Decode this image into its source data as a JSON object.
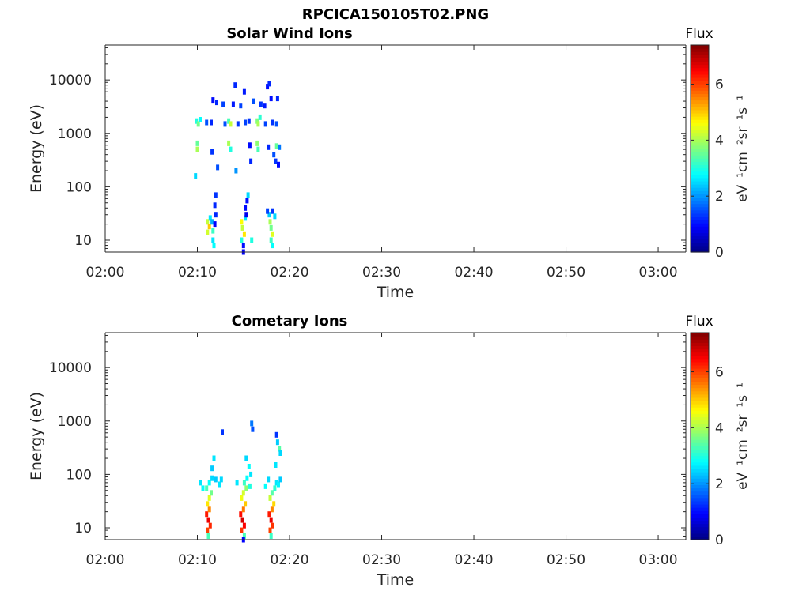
{
  "figure_title": "RPCICA150105T02.PNG",
  "colors": {
    "jet_stops": [
      "#00007f",
      "#0000ff",
      "#007fff",
      "#00ffff",
      "#7fff7f",
      "#ffff00",
      "#ff7f00",
      "#ff0000",
      "#7f0000"
    ]
  },
  "chart_data": [
    {
      "type": "heatmap",
      "title": "Solar Wind Ions",
      "xlabel": "Time",
      "ylabel": "Energy (eV)",
      "y_scale": "log",
      "ylim": [
        6,
        45000
      ],
      "xlim": [
        "02:00",
        "03:03"
      ],
      "x_ticks": [
        "02:00",
        "02:10",
        "02:20",
        "02:30",
        "02:40",
        "02:50",
        "03:00"
      ],
      "y_ticks": [
        "10",
        "100",
        "1000",
        "10000"
      ],
      "colorbar": {
        "title": "Flux",
        "label": "eV⁻¹cm⁻²sr⁻¹s⁻¹",
        "range": [
          0,
          7.4
        ],
        "ticks": [
          "0",
          "2",
          "4",
          "6"
        ]
      },
      "grid": false,
      "pixels": [
        {
          "t": "02:09.9",
          "e": 1700,
          "v": 3.0
        },
        {
          "t": "02:10.1",
          "e": 1500,
          "v": 3.6
        },
        {
          "t": "02:10.3",
          "e": 1800,
          "v": 2.8
        },
        {
          "t": "02:10.0",
          "e": 650,
          "v": 3.5
        },
        {
          "t": "02:10.0",
          "e": 500,
          "v": 4.0
        },
        {
          "t": "02:09.8",
          "e": 160,
          "v": 2.5
        },
        {
          "t": "02:11.0",
          "e": 1600,
          "v": 1.5
        },
        {
          "t": "02:11.5",
          "e": 1600,
          "v": 1.2
        },
        {
          "t": "02:11.7",
          "e": 4200,
          "v": 1.0
        },
        {
          "t": "02:12.1",
          "e": 3800,
          "v": 1.2
        },
        {
          "t": "02:11.6",
          "e": 450,
          "v": 1.3
        },
        {
          "t": "02:12.2",
          "e": 230,
          "v": 1.5
        },
        {
          "t": "02:12.8",
          "e": 3500,
          "v": 1.4
        },
        {
          "t": "02:13.0",
          "e": 1500,
          "v": 1.5
        },
        {
          "t": "02:13.4",
          "e": 1700,
          "v": 3.3
        },
        {
          "t": "02:13.6",
          "e": 1500,
          "v": 4.2
        },
        {
          "t": "02:13.4",
          "e": 650,
          "v": 4.0
        },
        {
          "t": "02:13.6",
          "e": 500,
          "v": 3.0
        },
        {
          "t": "02:13.9",
          "e": 3500,
          "v": 1.1
        },
        {
          "t": "02:14.7",
          "e": 3300,
          "v": 1.4
        },
        {
          "t": "02:14.4",
          "e": 1500,
          "v": 1.3
        },
        {
          "t": "02:14.2",
          "e": 200,
          "v": 2.0
        },
        {
          "t": "02:14.1",
          "e": 8000,
          "v": 1.2
        },
        {
          "t": "02:15.2",
          "e": 1600,
          "v": 1.4
        },
        {
          "t": "02:15.6",
          "e": 1700,
          "v": 1.3
        },
        {
          "t": "02:15.1",
          "e": 6000,
          "v": 1.1
        },
        {
          "t": "02:15.7",
          "e": 600,
          "v": 1.0
        },
        {
          "t": "02:15.8",
          "e": 300,
          "v": 1.2
        },
        {
          "t": "02:16.1",
          "e": 4000,
          "v": 1.5
        },
        {
          "t": "02:16.5",
          "e": 1700,
          "v": 3.7
        },
        {
          "t": "02:16.6",
          "e": 1500,
          "v": 4.0
        },
        {
          "t": "02:16.8",
          "e": 2000,
          "v": 3.1
        },
        {
          "t": "02:16.5",
          "e": 650,
          "v": 3.8
        },
        {
          "t": "02:16.6",
          "e": 500,
          "v": 3.3
        },
        {
          "t": "02:16.9",
          "e": 3500,
          "v": 1.3
        },
        {
          "t": "02:17.3",
          "e": 3300,
          "v": 1.1
        },
        {
          "t": "02:17.6",
          "e": 7500,
          "v": 1.0
        },
        {
          "t": "02:17.8",
          "e": 8500,
          "v": 1.2
        },
        {
          "t": "02:17.4",
          "e": 1500,
          "v": 1.4
        },
        {
          "t": "02:18.2",
          "e": 1600,
          "v": 1.3
        },
        {
          "t": "02:18.6",
          "e": 1500,
          "v": 1.5
        },
        {
          "t": "02:17.7",
          "e": 550,
          "v": 1.2
        },
        {
          "t": "02:18.3",
          "e": 400,
          "v": 1.5
        },
        {
          "t": "02:18.6",
          "e": 580,
          "v": 3.5
        },
        {
          "t": "02:18.9",
          "e": 550,
          "v": 1.8
        },
        {
          "t": "02:18.7",
          "e": 4500,
          "v": 1.2
        },
        {
          "t": "02:18.0",
          "e": 4500,
          "v": 1.0
        },
        {
          "t": "02:18.5",
          "e": 300,
          "v": 1.3
        },
        {
          "t": "02:18.8",
          "e": 260,
          "v": 1.0
        },
        {
          "t": "02:11.1",
          "e": 22,
          "v": 4.2
        },
        {
          "t": "02:11.3",
          "e": 18,
          "v": 5.0
        },
        {
          "t": "02:11.1",
          "e": 14,
          "v": 4.3
        },
        {
          "t": "02:11.4",
          "e": 26,
          "v": 2.6
        },
        {
          "t": "02:11.6",
          "e": 22,
          "v": 2.2
        },
        {
          "t": "02:11.7",
          "e": 15,
          "v": 3.2
        },
        {
          "t": "02:11.7",
          "e": 10,
          "v": 2.6
        },
        {
          "t": "02:11.8",
          "e": 8,
          "v": 2.8
        },
        {
          "t": "02:12.0",
          "e": 30,
          "v": 1.2
        },
        {
          "t": "02:12.0",
          "e": 70,
          "v": 1.3
        },
        {
          "t": "02:11.9",
          "e": 45,
          "v": 1.2
        },
        {
          "t": "02:11.9",
          "e": 20,
          "v": 0.9
        },
        {
          "t": "02:14.8",
          "e": 22,
          "v": 4.6
        },
        {
          "t": "02:14.9",
          "e": 17,
          "v": 4.2
        },
        {
          "t": "02:15.1",
          "e": 13,
          "v": 4.8
        },
        {
          "t": "02:15.2",
          "e": 26,
          "v": 2.6
        },
        {
          "t": "02:14.8",
          "e": 10,
          "v": 3.0
        },
        {
          "t": "02:15.0",
          "e": 8,
          "v": 1.0
        },
        {
          "t": "02:15.2",
          "e": 40,
          "v": 1.0
        },
        {
          "t": "02:15.4",
          "e": 55,
          "v": 1.0
        },
        {
          "t": "02:15.3",
          "e": 30,
          "v": 0.8
        },
        {
          "t": "02:15.0",
          "e": 6,
          "v": 0.9
        },
        {
          "t": "02:15.9",
          "e": 10,
          "v": 3.0
        },
        {
          "t": "02:15.5",
          "e": 70,
          "v": 2.5
        },
        {
          "t": "02:17.9",
          "e": 22,
          "v": 4.0
        },
        {
          "t": "02:18.0",
          "e": 17,
          "v": 3.6
        },
        {
          "t": "02:18.2",
          "e": 13,
          "v": 4.4
        },
        {
          "t": "02:17.8",
          "e": 30,
          "v": 2.4
        },
        {
          "t": "02:18.2",
          "e": 35,
          "v": 1.3
        },
        {
          "t": "02:18.4",
          "e": 28,
          "v": 2.5
        },
        {
          "t": "02:18.0",
          "e": 10,
          "v": 3.2
        },
        {
          "t": "02:18.2",
          "e": 8,
          "v": 2.8
        },
        {
          "t": "02:17.6",
          "e": 35,
          "v": 1.4
        }
      ]
    },
    {
      "type": "heatmap",
      "title": "Cometary Ions",
      "xlabel": "Time",
      "ylabel": "Energy (eV)",
      "y_scale": "log",
      "ylim": [
        6,
        45000
      ],
      "xlim": [
        "02:00",
        "03:03"
      ],
      "x_ticks": [
        "02:00",
        "02:10",
        "02:20",
        "02:30",
        "02:40",
        "02:50",
        "03:00"
      ],
      "y_ticks": [
        "10",
        "100",
        "1000",
        "10000"
      ],
      "colorbar": {
        "title": "Flux",
        "label": "eV⁻¹cm⁻²sr⁻¹s⁻¹",
        "range": [
          0,
          7.4
        ],
        "ticks": [
          "0",
          "2",
          "4",
          "6"
        ]
      },
      "grid": false,
      "pixels": [
        {
          "t": "02:11.0",
          "e": 18,
          "v": 6.3
        },
        {
          "t": "02:11.2",
          "e": 14,
          "v": 6.6
        },
        {
          "t": "02:11.4",
          "e": 11,
          "v": 6.2
        },
        {
          "t": "02:11.1",
          "e": 9,
          "v": 6.0
        },
        {
          "t": "02:11.3",
          "e": 22,
          "v": 5.5
        },
        {
          "t": "02:11.1",
          "e": 28,
          "v": 4.8
        },
        {
          "t": "02:11.3",
          "e": 36,
          "v": 4.4
        },
        {
          "t": "02:11.5",
          "e": 45,
          "v": 3.6
        },
        {
          "t": "02:11.0",
          "e": 55,
          "v": 3.3
        },
        {
          "t": "02:11.3",
          "e": 70,
          "v": 2.8
        },
        {
          "t": "02:11.6",
          "e": 85,
          "v": 2.5
        },
        {
          "t": "02:10.3",
          "e": 70,
          "v": 2.6
        },
        {
          "t": "02:10.6",
          "e": 55,
          "v": 2.8
        },
        {
          "t": "02:12.0",
          "e": 80,
          "v": 2.4
        },
        {
          "t": "02:12.4",
          "e": 65,
          "v": 2.6
        },
        {
          "t": "02:12.6",
          "e": 80,
          "v": 2.5
        },
        {
          "t": "02:11.2",
          "e": 7,
          "v": 3.3
        },
        {
          "t": "02:11.6",
          "e": 130,
          "v": 2.4
        },
        {
          "t": "02:11.8",
          "e": 200,
          "v": 2.6
        },
        {
          "t": "02:12.7",
          "e": 620,
          "v": 1.3
        },
        {
          "t": "02:14.7",
          "e": 18,
          "v": 6.4
        },
        {
          "t": "02:14.9",
          "e": 14,
          "v": 6.8
        },
        {
          "t": "02:15.1",
          "e": 11,
          "v": 6.5
        },
        {
          "t": "02:14.8",
          "e": 9,
          "v": 6.1
        },
        {
          "t": "02:15.0",
          "e": 22,
          "v": 5.6
        },
        {
          "t": "02:15.2",
          "e": 28,
          "v": 5.0
        },
        {
          "t": "02:14.8",
          "e": 36,
          "v": 4.5
        },
        {
          "t": "02:15.0",
          "e": 45,
          "v": 4.3
        },
        {
          "t": "02:15.3",
          "e": 55,
          "v": 3.8
        },
        {
          "t": "02:15.1",
          "e": 70,
          "v": 3.2
        },
        {
          "t": "02:15.4",
          "e": 85,
          "v": 2.8
        },
        {
          "t": "02:14.3",
          "e": 70,
          "v": 2.6
        },
        {
          "t": "02:15.7",
          "e": 60,
          "v": 3.0
        },
        {
          "t": "02:15.8",
          "e": 100,
          "v": 2.6
        },
        {
          "t": "02:15.6",
          "e": 140,
          "v": 2.8
        },
        {
          "t": "02:15.1",
          "e": 7,
          "v": 3.3
        },
        {
          "t": "02:15.0",
          "e": 6,
          "v": 0.9
        },
        {
          "t": "02:15.9",
          "e": 900,
          "v": 1.8
        },
        {
          "t": "02:16.0",
          "e": 700,
          "v": 1.5
        },
        {
          "t": "02:15.3",
          "e": 200,
          "v": 2.5
        },
        {
          "t": "02:17.8",
          "e": 18,
          "v": 6.3
        },
        {
          "t": "02:18.0",
          "e": 14,
          "v": 6.6
        },
        {
          "t": "02:18.2",
          "e": 11,
          "v": 6.1
        },
        {
          "t": "02:17.9",
          "e": 9,
          "v": 6.0
        },
        {
          "t": "02:18.1",
          "e": 22,
          "v": 5.5
        },
        {
          "t": "02:18.3",
          "e": 28,
          "v": 4.9
        },
        {
          "t": "02:17.9",
          "e": 36,
          "v": 4.2
        },
        {
          "t": "02:18.1",
          "e": 45,
          "v": 3.4
        },
        {
          "t": "02:18.4",
          "e": 55,
          "v": 3.1
        },
        {
          "t": "02:18.6",
          "e": 70,
          "v": 2.6
        },
        {
          "t": "02:17.7",
          "e": 80,
          "v": 2.5
        },
        {
          "t": "02:18.0",
          "e": 7,
          "v": 3.2
        },
        {
          "t": "02:18.5",
          "e": 150,
          "v": 2.6
        },
        {
          "t": "02:18.7",
          "e": 400,
          "v": 2.4
        },
        {
          "t": "02:18.9",
          "e": 300,
          "v": 3.4
        },
        {
          "t": "02:19.0",
          "e": 250,
          "v": 2.5
        },
        {
          "t": "02:18.6",
          "e": 550,
          "v": 1.3
        },
        {
          "t": "02:18.8",
          "e": 65,
          "v": 2.7
        },
        {
          "t": "02:19.0",
          "e": 80,
          "v": 2.4
        },
        {
          "t": "02:17.4",
          "e": 60,
          "v": 2.8
        }
      ]
    }
  ]
}
